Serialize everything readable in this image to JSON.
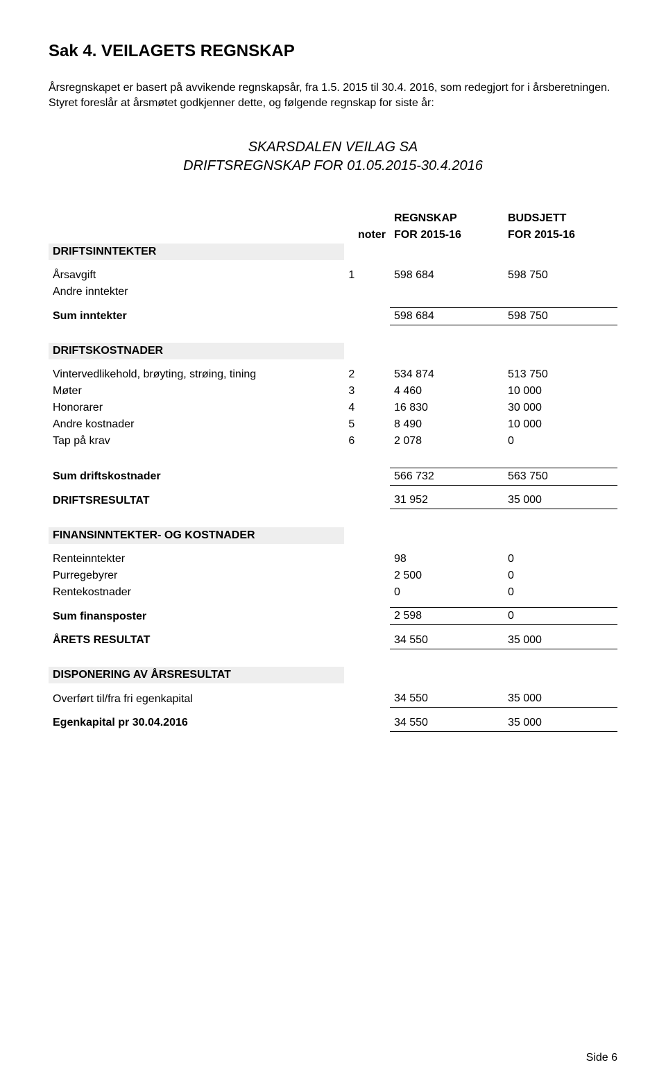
{
  "page": {
    "title": "Sak 4. VEILAGETS REGNSKAP",
    "intro": "Årsregnskapet er basert på avvikende regnskapsår, fra 1.5. 2015 til 30.4. 2016, som redegjort for i årsberetningen. Styret foreslår at årsmøtet godkjenner dette, og følgende regnskap for siste år:",
    "subtitle_line1": "SKARSDALEN VEILAG SA",
    "subtitle_line2": "DRIFTSREGNSKAP FOR 01.05.2015-30.4.2016",
    "footer": "Side 6"
  },
  "columns": {
    "noter": "noter",
    "regnskap_h1": "REGNSKAP",
    "regnskap_h2": "FOR 2015-16",
    "budsjett_h1": "BUDSJETT",
    "budsjett_h2": "FOR 2015-16"
  },
  "s1": {
    "header": "DRIFTSINNTEKTER",
    "rows": {
      "r0": {
        "label": "Årsavgift",
        "note": "1",
        "a": "598 684",
        "b": "598 750"
      },
      "r1": {
        "label": "Andre inntekter",
        "note": "",
        "a": "",
        "b": ""
      }
    },
    "sum": {
      "label": "Sum inntekter",
      "a": "598 684",
      "b": "598 750"
    }
  },
  "s2": {
    "header": "DRIFTSKOSTNADER",
    "rows": {
      "r0": {
        "label": "Vintervedlikehold, brøyting, strøing, tining",
        "note": "2",
        "a": "534 874",
        "b": "513 750"
      },
      "r1": {
        "label": "Møter",
        "note": "3",
        "a": "4 460",
        "b": "10 000"
      },
      "r2": {
        "label": "Honorarer",
        "note": "4",
        "a": "16 830",
        "b": "30 000"
      },
      "r3": {
        "label": "Andre kostnader",
        "note": "5",
        "a": "8 490",
        "b": "10 000"
      },
      "r4": {
        "label": "Tap på krav",
        "note": "6",
        "a": "2 078",
        "b": "0"
      }
    },
    "sum": {
      "label": "Sum driftskostnader",
      "a": "566 732",
      "b": "563 750"
    }
  },
  "driftsresultat": {
    "label": "DRIFTSRESULTAT",
    "a": "31 952",
    "b": "35 000"
  },
  "s3": {
    "header": "FINANSINNTEKTER- OG KOSTNADER",
    "rows": {
      "r0": {
        "label": "Renteinntekter",
        "a": "98",
        "b": "0"
      },
      "r1": {
        "label": "Purregebyrer",
        "a": "2 500",
        "b": "0"
      },
      "r2": {
        "label": "Rentekostnader",
        "a": "0",
        "b": "0"
      }
    },
    "sum": {
      "label": "Sum finansposter",
      "a": "2 598",
      "b": "0"
    }
  },
  "arets": {
    "label": "ÅRETS RESULTAT",
    "a": "34 550",
    "b": "35 000"
  },
  "s4": {
    "header": "DISPONERING AV ÅRSRESULTAT",
    "rows": {
      "r0": {
        "label": "Overført til/fra fri egenkapital",
        "a": "34 550",
        "b": "35 000"
      }
    },
    "eg": {
      "label": "Egenkapital pr 30.04.2016",
      "a": "34 550",
      "b": "35 000"
    }
  },
  "style": {
    "section_bg": "#eeeeee",
    "text_color": "#000000",
    "fontsize_title": 24,
    "fontsize_body": 16,
    "fontsize_subtitle": 20
  }
}
